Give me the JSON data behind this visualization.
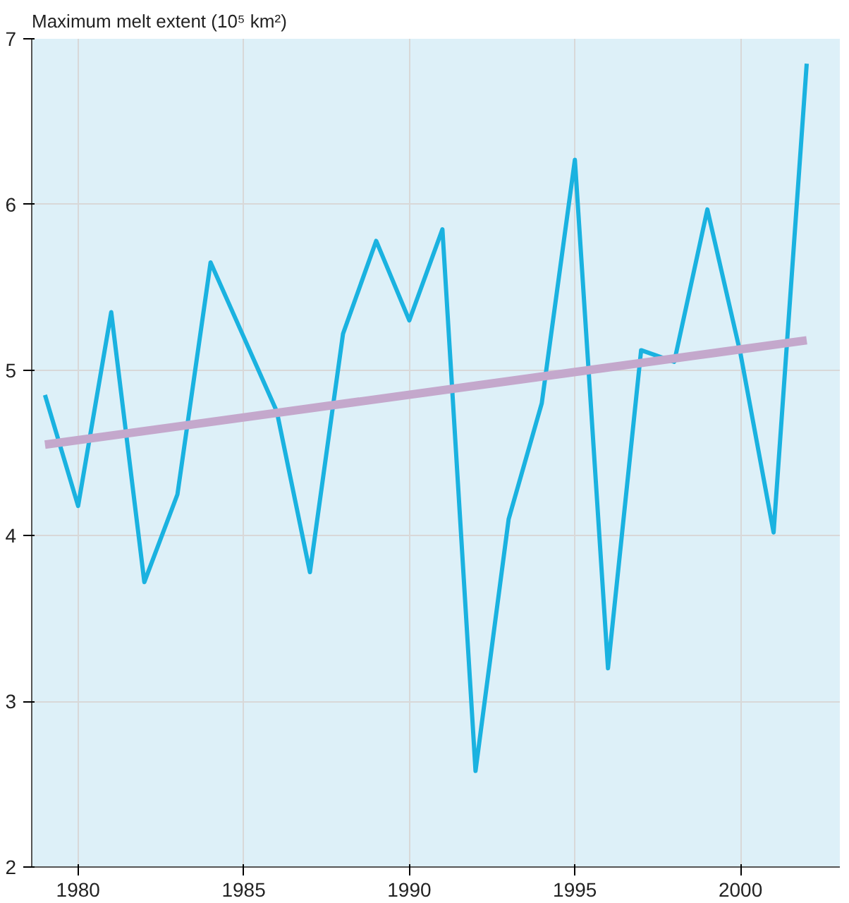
{
  "chart_data": {
    "type": "line",
    "ylabel": "Maximum melt extent (10⁵ km²)",
    "x": [
      1979,
      1980,
      1981,
      1982,
      1983,
      1984,
      1985,
      1986,
      1987,
      1988,
      1989,
      1990,
      1991,
      1992,
      1993,
      1994,
      1995,
      1996,
      1997,
      1998,
      1999,
      2000,
      2001,
      2002
    ],
    "series": [
      {
        "color": "#1ab2e0",
        "values": [
          4.85,
          4.18,
          5.35,
          3.72,
          4.25,
          5.65,
          5.2,
          4.75,
          3.78,
          5.22,
          5.78,
          5.3,
          5.85,
          2.58,
          4.1,
          4.8,
          6.27,
          3.2,
          5.12,
          5.05,
          5.97,
          5.1,
          4.02,
          6.85
        ]
      },
      {
        "type": "line",
        "color": "#c4a8cc",
        "x": [
          1979,
          2002
        ],
        "values": [
          4.55,
          5.18
        ]
      }
    ],
    "xlim": [
      1978.6,
      2003
    ],
    "ylim": [
      2,
      7
    ],
    "xticks": [
      1980,
      1985,
      1990,
      1995,
      2000
    ],
    "yticks": [
      2,
      3,
      4,
      5,
      6,
      7
    ],
    "grid": true,
    "marker": "none",
    "line_style": "solid"
  }
}
